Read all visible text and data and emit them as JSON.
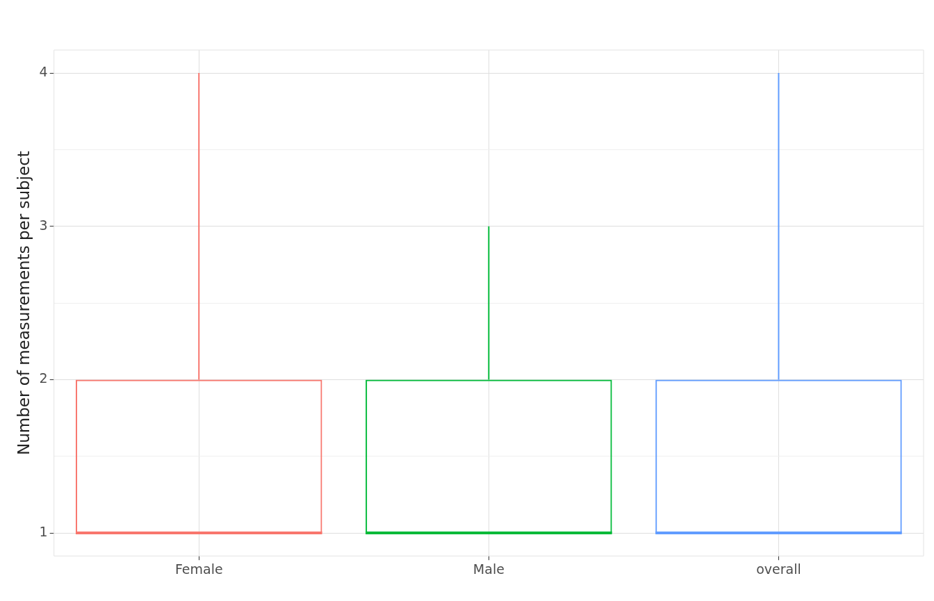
{
  "chart_data": {
    "type": "box",
    "ylabel": "Number of measurements per subject",
    "categories": [
      "Female",
      "Male",
      "overall"
    ],
    "colors": [
      "#f8766d",
      "#00ba38",
      "#619cff"
    ],
    "boxes": [
      {
        "low": 1,
        "q1": 1,
        "median": 1,
        "q3": 2,
        "high": 4
      },
      {
        "low": 1,
        "q1": 1,
        "median": 1,
        "q3": 2,
        "high": 3
      },
      {
        "low": 1,
        "q1": 1,
        "median": 1,
        "q3": 2,
        "high": 4
      }
    ],
    "ylim": [
      0.85,
      4.15
    ],
    "yticks": [
      1,
      {
        "value": 1.5,
        "label": null
      },
      2,
      {
        "value": 2.5,
        "label": null
      },
      3,
      {
        "value": 3.5,
        "label": null
      },
      4
    ],
    "grid": true
  }
}
